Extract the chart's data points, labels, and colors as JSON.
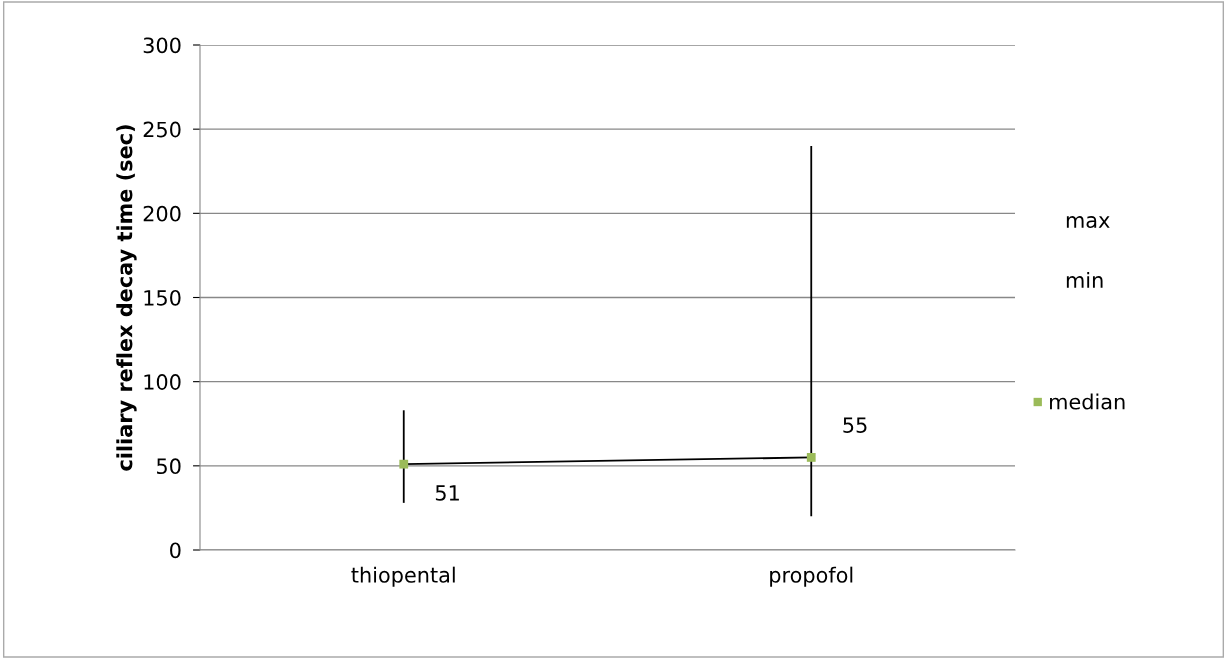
{
  "chart_data": {
    "type": "scatter",
    "ylabel": "ciliary reflex decay time (sec)",
    "categories": [
      "thiopental",
      "propofol"
    ],
    "series": [
      {
        "type": "line",
        "color": "#000000",
        "values": [
          51,
          55
        ],
        "marker": "none",
        "line_style": "solid"
      },
      {
        "name": "median",
        "color": "#9bbb59",
        "values": [
          51,
          55
        ],
        "marker": "square",
        "errors": [
          [
            28,
            83
          ],
          [
            20,
            240
          ]
        ],
        "data_labels": true
      }
    ],
    "annotations": [
      "max",
      "min"
    ],
    "ylim": [
      0,
      300
    ],
    "yticks": [
      0,
      50,
      100,
      150,
      200,
      250,
      300
    ],
    "grid": "y",
    "legend": "right"
  }
}
